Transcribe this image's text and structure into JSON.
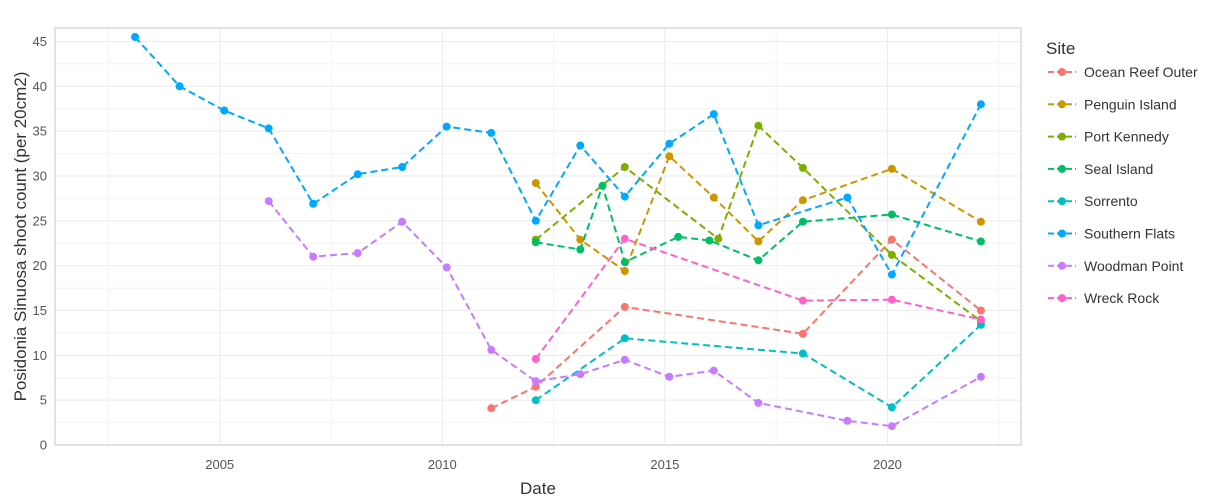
{
  "chart_data": {
    "type": "line",
    "xlabel": "Date",
    "ylabel": "Posidonia Sinuosa shoot count (per 20cm2)",
    "xlim": [
      2001.3,
      2023.0
    ],
    "ylim": [
      0,
      46.5
    ],
    "x_ticks": [
      2005,
      2010,
      2015,
      2020
    ],
    "y_ticks": [
      0,
      5,
      10,
      15,
      20,
      25,
      30,
      35,
      40,
      45
    ],
    "grid": true,
    "line_style": "dashed",
    "legend_title": "Site",
    "legend_position": "right",
    "series": [
      {
        "name": "Ocean Reef Outer",
        "color": "#F8766D",
        "points": [
          [
            2011.1,
            4.1
          ],
          [
            2012.1,
            6.5
          ],
          [
            2014.1,
            15.4
          ],
          [
            2018.1,
            12.4
          ],
          [
            2020.1,
            22.9
          ],
          [
            2022.1,
            15.0
          ]
        ]
      },
      {
        "name": "Penguin Island",
        "color": "#CD9600",
        "points": [
          [
            2012.1,
            29.2
          ],
          [
            2013.1,
            22.9
          ],
          [
            2014.1,
            19.4
          ],
          [
            2015.1,
            32.2
          ],
          [
            2016.1,
            27.6
          ],
          [
            2017.1,
            22.7
          ],
          [
            2018.1,
            27.3
          ],
          [
            2020.1,
            30.8
          ],
          [
            2022.1,
            24.9
          ]
        ]
      },
      {
        "name": "Port Kennedy",
        "color": "#7CAE00",
        "points": [
          [
            2012.1,
            22.9
          ],
          [
            2014.1,
            31.0
          ],
          [
            2016.2,
            23.0
          ],
          [
            2017.1,
            35.6
          ],
          [
            2018.1,
            30.9
          ],
          [
            2020.1,
            21.2
          ],
          [
            2022.1,
            13.8
          ]
        ]
      },
      {
        "name": "Seal Island",
        "color": "#00BE67",
        "points": [
          [
            2012.1,
            22.6
          ],
          [
            2013.1,
            21.8
          ],
          [
            2013.6,
            28.9
          ],
          [
            2014.1,
            20.4
          ],
          [
            2015.3,
            23.2
          ],
          [
            2016.0,
            22.8
          ],
          [
            2017.1,
            20.6
          ],
          [
            2018.1,
            24.9
          ],
          [
            2020.1,
            25.7
          ],
          [
            2022.1,
            22.7
          ]
        ]
      },
      {
        "name": "Sorrento",
        "color": "#00BFC4",
        "points": [
          [
            2012.1,
            5.0
          ],
          [
            2014.1,
            11.9
          ],
          [
            2018.1,
            10.2
          ],
          [
            2020.1,
            4.2
          ],
          [
            2022.1,
            13.4
          ]
        ]
      },
      {
        "name": "Southern Flats",
        "color": "#00A9FF",
        "points": [
          [
            2003.1,
            45.5
          ],
          [
            2004.1,
            40.0
          ],
          [
            2005.1,
            37.3
          ],
          [
            2006.1,
            35.3
          ],
          [
            2007.1,
            26.9
          ],
          [
            2008.1,
            30.2
          ],
          [
            2009.1,
            31.0
          ],
          [
            2010.1,
            35.5
          ],
          [
            2011.1,
            34.8
          ],
          [
            2012.1,
            25.0
          ],
          [
            2013.1,
            33.4
          ],
          [
            2014.1,
            27.7
          ],
          [
            2015.1,
            33.6
          ],
          [
            2016.1,
            36.9
          ],
          [
            2017.1,
            24.5
          ],
          [
            2019.1,
            27.6
          ],
          [
            2020.1,
            19.0
          ],
          [
            2022.1,
            38.0
          ]
        ]
      },
      {
        "name": "Woodman Point",
        "color": "#C77CFF",
        "points": [
          [
            2006.1,
            27.2
          ],
          [
            2007.1,
            21.0
          ],
          [
            2008.1,
            21.4
          ],
          [
            2009.1,
            24.9
          ],
          [
            2010.1,
            19.8
          ],
          [
            2011.1,
            10.6
          ],
          [
            2012.1,
            7.1
          ],
          [
            2013.1,
            7.9
          ],
          [
            2014.1,
            9.5
          ],
          [
            2015.1,
            7.6
          ],
          [
            2016.1,
            8.3
          ],
          [
            2017.1,
            4.7
          ],
          [
            2019.1,
            2.7
          ],
          [
            2020.1,
            2.1
          ],
          [
            2022.1,
            7.6
          ]
        ]
      },
      {
        "name": "Wreck Rock",
        "color": "#FF61CC",
        "points": [
          [
            2012.1,
            9.6
          ],
          [
            2014.1,
            23.0
          ],
          [
            2018.1,
            16.1
          ],
          [
            2020.1,
            16.2
          ],
          [
            2022.1,
            14.0
          ]
        ]
      }
    ]
  }
}
